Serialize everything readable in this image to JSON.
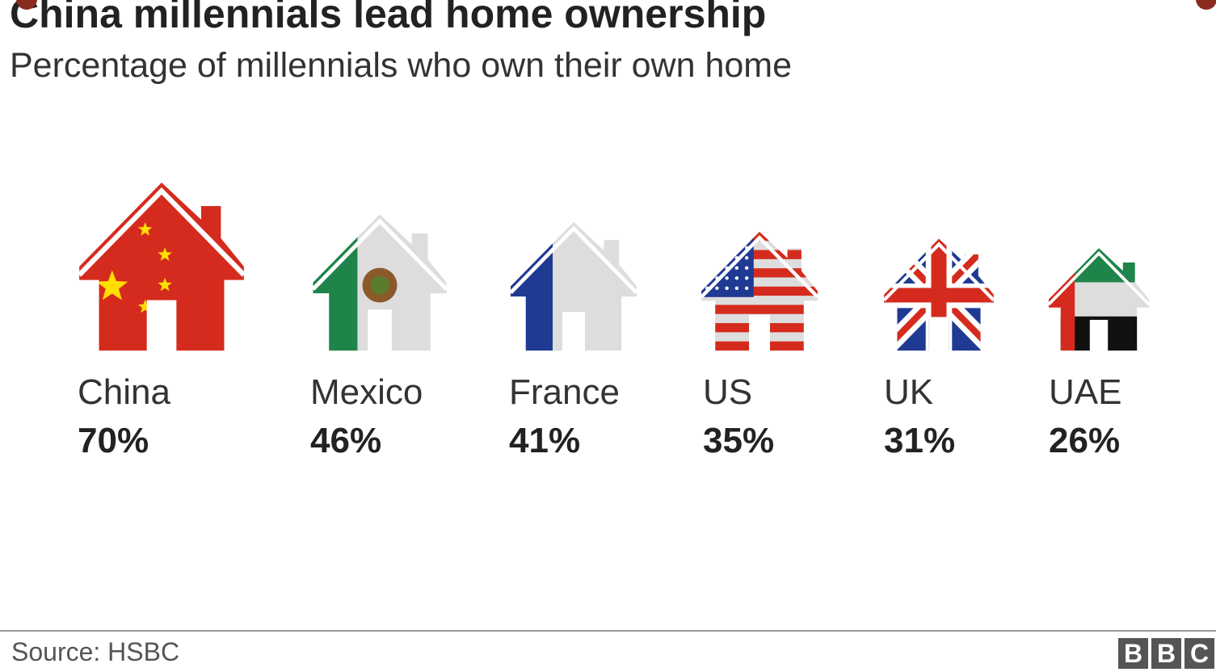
{
  "title": "China millennials lead home ownership",
  "subtitle": "Percentage of millennials who own their own home",
  "source": "Source: HSBC",
  "logo_letters": [
    "B",
    "B",
    "C"
  ],
  "colors": {
    "text": "#222222",
    "red": "#d52b1e",
    "yellow": "#ffde00",
    "green": "#1e8449",
    "blue": "#1f3a93",
    "white": "#dddddd",
    "black": "#111111",
    "logo": "#555555"
  },
  "chart_data": {
    "type": "pictogram",
    "title": "China millennials lead home ownership",
    "subtitle": "Percentage of millennials who own their own home",
    "categories": [
      "China",
      "Mexico",
      "France",
      "US",
      "UK",
      "UAE"
    ],
    "values": [
      70,
      46,
      41,
      35,
      31,
      26
    ],
    "value_labels": [
      "70%",
      "46%",
      "41%",
      "35%",
      "31%",
      "26%"
    ],
    "icon": "house-icon",
    "icon_flags": [
      "china-flag",
      "mexico-flag",
      "france-flag",
      "us-flag",
      "uk-flag",
      "uae-flag"
    ],
    "unit": "%",
    "source": "Source: HSBC"
  }
}
